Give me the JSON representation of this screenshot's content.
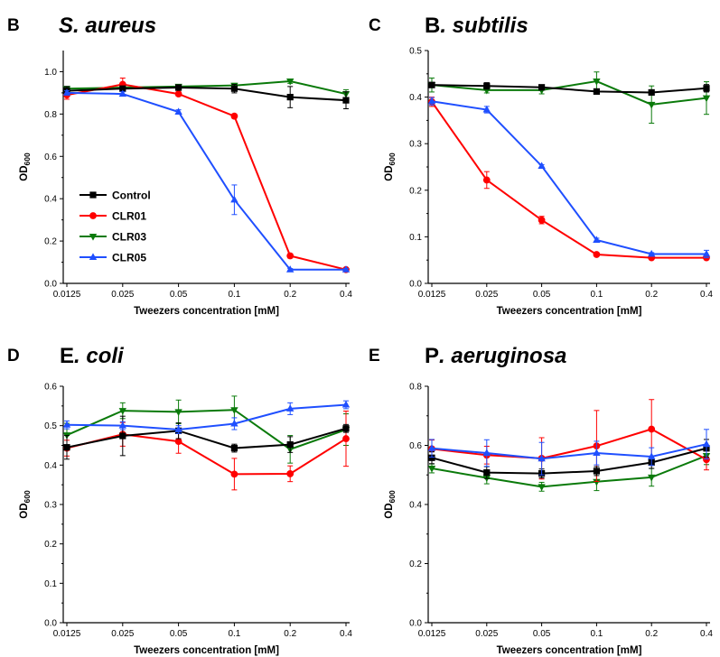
{
  "figure": {
    "x_axis_title": "Tweezers concentration [mM]",
    "y_axis_title_main": "OD",
    "y_axis_title_sub": "600"
  },
  "colors": {
    "Control": "#000000",
    "CLR01": "#ff0000",
    "CLR03": "#0a7a0a",
    "CLR05": "#1f4fff"
  },
  "markers": {
    "Control": "square",
    "CLR01": "circle",
    "CLR03": "triangle-down",
    "CLR05": "triangle-up"
  },
  "legend": {
    "entries": [
      "Control",
      "CLR01",
      "CLR03",
      "CLR05"
    ],
    "location": "B panel, lower left"
  },
  "chart_data": [
    {
      "panel": "B",
      "title_pre": "",
      "title_italic": "S. aureus",
      "title_rest": "",
      "type": "line",
      "xscale": "categorical",
      "categories": [
        "0.0125",
        "0.025",
        "0.05",
        "0.1",
        "0.2",
        "0.4"
      ],
      "ylim": [
        0,
        1.1
      ],
      "yticks": [
        "0.0",
        "0.2",
        "0.4",
        "0.6",
        "0.8",
        "1.0"
      ],
      "xlabel": "Tweezers concentration [mM]",
      "ylabel": "OD600",
      "series": [
        {
          "name": "Control",
          "values": [
            0.91,
            0.92,
            0.925,
            0.92,
            0.88,
            0.865
          ],
          "err": [
            0.02,
            0.01,
            0.01,
            0.02,
            0.05,
            0.04
          ]
        },
        {
          "name": "CLR01",
          "values": [
            0.89,
            0.94,
            0.895,
            0.79,
            0.13,
            0.065
          ],
          "err": [
            0.02,
            0.03,
            0.01,
            0.01,
            0.01,
            0.005
          ]
        },
        {
          "name": "CLR03",
          "values": [
            0.92,
            0.925,
            0.93,
            0.935,
            0.955,
            0.895
          ],
          "err": [
            0.01,
            0.01,
            0.01,
            0.01,
            0.01,
            0.02
          ]
        },
        {
          "name": "CLR05",
          "values": [
            0.9,
            0.895,
            0.81,
            0.395,
            0.065,
            0.065
          ],
          "err": [
            0.01,
            0.01,
            0.01,
            0.07,
            0.005,
            0.005
          ]
        }
      ]
    },
    {
      "panel": "C",
      "title_pre": "B",
      "title_italic": ". subtilis",
      "title_rest": "",
      "type": "line",
      "xscale": "categorical",
      "categories": [
        "0.0125",
        "0.025",
        "0.05",
        "0.1",
        "0.2",
        "0.4"
      ],
      "ylim": [
        0,
        0.5
      ],
      "yticks": [
        "0.0",
        "0.1",
        "0.2",
        "0.3",
        "0.4",
        "0.5"
      ],
      "xlabel": "Tweezers concentration [mM]",
      "ylabel": "OD600",
      "series": [
        {
          "name": "Control",
          "values": [
            0.426,
            0.424,
            0.421,
            0.412,
            0.41,
            0.419
          ],
          "err": [
            0.005,
            0.007,
            0.005,
            0.005,
            0.005,
            0.008
          ]
        },
        {
          "name": "CLR01",
          "values": [
            0.39,
            0.222,
            0.136,
            0.062,
            0.055,
            0.055
          ],
          "err": [
            0.01,
            0.018,
            0.008,
            0.003,
            0.003,
            0.003
          ]
        },
        {
          "name": "CLR03",
          "values": [
            0.426,
            0.415,
            0.415,
            0.434,
            0.384,
            0.398
          ],
          "err": [
            0.015,
            0.006,
            0.008,
            0.02,
            0.04,
            0.035
          ]
        },
        {
          "name": "CLR05",
          "values": [
            0.391,
            0.373,
            0.252,
            0.093,
            0.063,
            0.063
          ],
          "err": [
            0.008,
            0.007,
            0.003,
            0.004,
            0.003,
            0.008
          ]
        }
      ]
    },
    {
      "panel": "D",
      "title_pre": "E",
      "title_italic": ". coli",
      "title_rest": "",
      "type": "line",
      "xscale": "categorical",
      "categories": [
        "0.0125",
        "0.025",
        "0.05",
        "0.1",
        "0.2",
        "0.4"
      ],
      "ylim": [
        0,
        0.6
      ],
      "yticks": [
        "0.0",
        "0.1",
        "0.2",
        "0.3",
        "0.4",
        "0.5",
        "0.6"
      ],
      "xlabel": "Tweezers concentration [mM]",
      "ylabel": "OD600",
      "series": [
        {
          "name": "Control",
          "values": [
            0.445,
            0.474,
            0.487,
            0.443,
            0.452,
            0.493
          ],
          "err": [
            0.03,
            0.05,
            0.02,
            0.01,
            0.02,
            0.01
          ]
        },
        {
          "name": "CLR01",
          "values": [
            0.443,
            0.478,
            0.46,
            0.377,
            0.378,
            0.467
          ],
          "err": [
            0.02,
            0.03,
            0.03,
            0.04,
            0.02,
            0.07
          ]
        },
        {
          "name": "CLR03",
          "values": [
            0.476,
            0.538,
            0.535,
            0.54,
            0.44,
            0.49
          ],
          "err": [
            0.03,
            0.02,
            0.03,
            0.035,
            0.035,
            0.04
          ]
        },
        {
          "name": "CLR05",
          "values": [
            0.502,
            0.5,
            0.49,
            0.505,
            0.543,
            0.553
          ],
          "err": [
            0.01,
            0.01,
            0.01,
            0.015,
            0.015,
            0.01
          ]
        }
      ]
    },
    {
      "panel": "E",
      "title_pre": "P",
      "title_italic": ". aeruginosa",
      "title_rest": "",
      "type": "line",
      "xscale": "categorical",
      "categories": [
        "0.0125",
        "0.025",
        "0.05",
        "0.1",
        "0.2",
        "0.4"
      ],
      "ylim": [
        0,
        0.8
      ],
      "yticks": [
        "0.0",
        "0.2",
        "0.4",
        "0.6",
        "0.8"
      ],
      "xlabel": "Tweezers concentration [mM]",
      "ylabel": "OD600",
      "series": [
        {
          "name": "Control",
          "values": [
            0.558,
            0.508,
            0.505,
            0.513,
            0.542,
            0.59
          ],
          "err": [
            0.02,
            0.02,
            0.015,
            0.015,
            0.02,
            0.03
          ]
        },
        {
          "name": "CLR01",
          "values": [
            0.588,
            0.567,
            0.556,
            0.598,
            0.655,
            0.552
          ],
          "err": [
            0.03,
            0.03,
            0.07,
            0.12,
            0.1,
            0.035
          ]
        },
        {
          "name": "CLR03",
          "values": [
            0.522,
            0.49,
            0.46,
            0.477,
            0.492,
            0.565
          ],
          "err": [
            0.015,
            0.02,
            0.015,
            0.03,
            0.03,
            0.03
          ]
        },
        {
          "name": "CLR05",
          "values": [
            0.59,
            0.574,
            0.555,
            0.574,
            0.562,
            0.604
          ],
          "err": [
            0.03,
            0.045,
            0.055,
            0.04,
            0.03,
            0.05
          ]
        }
      ]
    }
  ]
}
